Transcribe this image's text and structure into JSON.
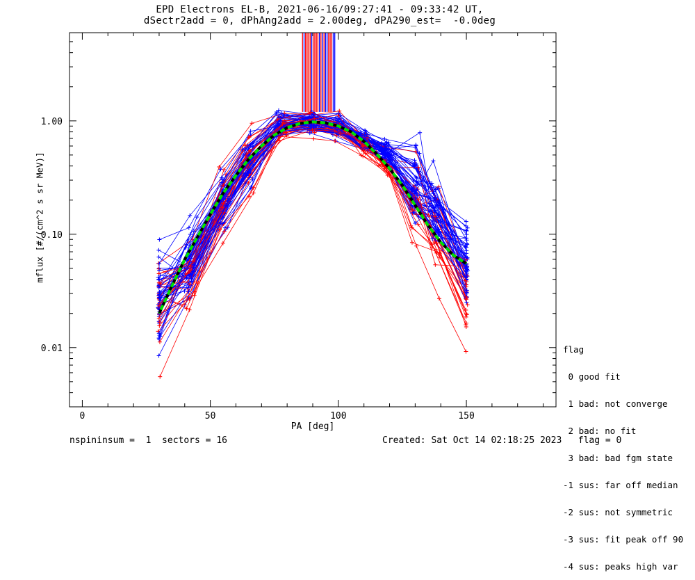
{
  "title": {
    "line1": "EPD Electrons EL-B, 2021-06-16/09:27:41 - 09:33:42 UT,",
    "line2": "dSectr2add = 0, dPhAng2add = 2.00deg, dPA290_est=  -0.0deg"
  },
  "legend": {
    "heading": "flag",
    "items": [
      " 0 good fit",
      " 1 bad: not converge",
      " 2 bad: no fit",
      " 3 bad: bad fgm state",
      "-1 sus: far off median",
      "-2 sus: not symmetric",
      "-3 sus: fit peak off 90",
      "-4 sus: peaks high var"
    ]
  },
  "footer": {
    "left": "nspininsum =  1  sectors = 16",
    "right": "Created: Sat Oct 14 02:18:25 2023   flag = 0"
  },
  "colors": {
    "red_series": "#ff0000",
    "blue_series": "#0000ff",
    "fit_green": "#00e000",
    "fit_black": "#000000"
  },
  "chart_data": {
    "type": "line",
    "xlabel": "PA [deg]",
    "ylabel": "mflux [#/(cm^2 s sr MeV)]",
    "xlim": [
      -5,
      185
    ],
    "ylim": [
      0.003,
      6.0
    ],
    "yscale": "log",
    "x_ticks": [
      0,
      50,
      100,
      150
    ],
    "y_ticks": [
      0.01,
      0.1,
      1.0
    ],
    "y_tick_labels": [
      "0.01",
      "0.10",
      "1.00"
    ],
    "grid": false,
    "pa_samples": [
      30,
      42,
      55,
      65,
      78,
      90,
      100,
      110,
      118,
      130,
      138,
      150
    ],
    "series_profiles": [
      {
        "name": "blue",
        "color": "blue",
        "values": [
          0.03,
          0.06,
          0.2,
          0.45,
          0.95,
          0.97,
          0.9,
          0.7,
          0.55,
          0.28,
          0.15,
          0.06
        ]
      },
      {
        "name": "red",
        "color": "red",
        "values": [
          0.02,
          0.045,
          0.18,
          0.42,
          0.9,
          0.95,
          0.88,
          0.6,
          0.42,
          0.18,
          0.09,
          0.03
        ]
      }
    ],
    "fit_dashed_green": {
      "x": [
        30,
        35,
        40,
        45,
        50,
        55,
        60,
        65,
        70,
        75,
        80,
        85,
        90,
        95,
        100,
        105,
        110,
        115,
        120,
        125,
        130,
        135,
        140,
        145,
        150
      ],
      "y": [
        0.02,
        0.035,
        0.06,
        0.095,
        0.15,
        0.23,
        0.33,
        0.46,
        0.6,
        0.75,
        0.87,
        0.95,
        0.98,
        0.96,
        0.9,
        0.8,
        0.66,
        0.51,
        0.38,
        0.27,
        0.18,
        0.12,
        0.085,
        0.065,
        0.055
      ]
    },
    "spike_region": {
      "x_range": [
        86,
        99
      ],
      "y_range": [
        1.2,
        6.0
      ],
      "colors": [
        "blue",
        "red"
      ]
    }
  }
}
